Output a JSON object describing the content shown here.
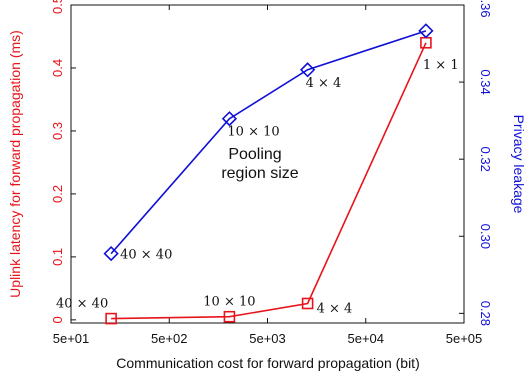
{
  "chart_data": {
    "type": "line",
    "xlabel": "Communication cost for forward propagation (bit)",
    "ylabel_left": "Uplink latency for forward propagation (ms)",
    "ylabel_right": "Privacy leakage",
    "x_scale": "log",
    "xlim": [
      50,
      500000
    ],
    "x_ticks": [
      50,
      500,
      5000,
      50000,
      500000
    ],
    "x_tick_labels": [
      "5e+01",
      "5e+02",
      "5e+03",
      "5e+04",
      "5e+05"
    ],
    "ylim_left": [
      -0.005,
      0.5
    ],
    "y_ticks_left": [
      0,
      0.1,
      0.2,
      0.3,
      0.4,
      0.5
    ],
    "y_tick_labels_left": [
      "0",
      "0.1",
      "0.2",
      "0.3",
      "0.4",
      "0.5"
    ],
    "ylim_right": [
      0.2775,
      0.36
    ],
    "y_ticks_right": [
      0.28,
      0.3,
      0.32,
      0.34,
      0.36
    ],
    "y_tick_labels_right": [
      "0.28",
      "0.30",
      "0.32",
      "0.34",
      "0.36"
    ],
    "grid": false,
    "colors": {
      "latency": "#e8141b",
      "privacy": "#1010d8"
    },
    "annotation": [
      "Pooling",
      "region size"
    ],
    "series": [
      {
        "axis": "left",
        "marker": "square",
        "x": [
          128,
          2048,
          12800,
          204800
        ],
        "y": [
          0.002,
          0.005,
          0.026,
          0.44
        ],
        "labels": [
          "40 × 40",
          "10 × 10",
          "4 × 4",
          "1 × 1"
        ]
      },
      {
        "axis": "right",
        "marker": "diamond",
        "x": [
          128,
          2048,
          12800,
          204800
        ],
        "y": [
          0.2955,
          0.3305,
          0.3432,
          0.3533
        ],
        "labels": [
          "40 × 40",
          "10 × 10",
          "4 × 4",
          "1 × 1"
        ]
      }
    ]
  }
}
